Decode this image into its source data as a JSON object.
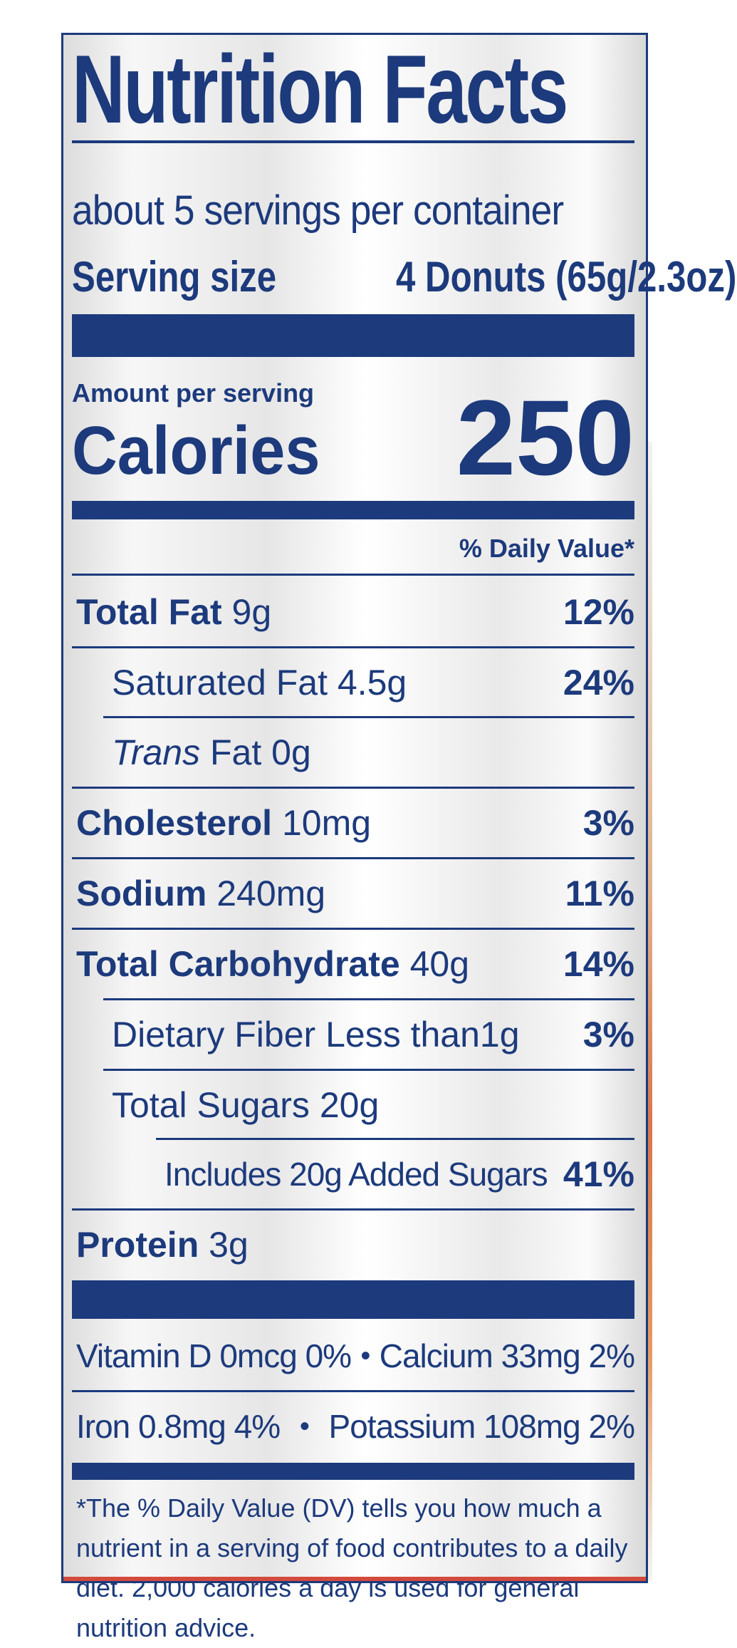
{
  "label": {
    "title": "Nutrition Facts",
    "servings_per_container": "about 5 servings per container",
    "serving_size_label": "Serving size",
    "serving_size_value": "4 Donuts (65g/2.3oz)",
    "amount_per_serving": "Amount per serving",
    "calories_label": "Calories",
    "calories_value": "250",
    "daily_value_header": "% Daily Value*",
    "nutrients": [
      {
        "name": "Total Fat",
        "amount": "9g",
        "dv": "12%"
      },
      {
        "name": "Saturated Fat",
        "amount": "4.5g",
        "dv": "24%"
      },
      {
        "name_italic": "Trans",
        "name": "Fat",
        "amount": "0g",
        "dv": ""
      },
      {
        "name": "Cholesterol",
        "amount": "10mg",
        "dv": "3%"
      },
      {
        "name": "Sodium",
        "amount": "240mg",
        "dv": "11%"
      },
      {
        "name": "Total Carbohydrate",
        "amount": "40g",
        "dv": "14%"
      },
      {
        "name": "Dietary Fiber Less than",
        "amount": "1g",
        "dv": "3%"
      },
      {
        "name": "Total Sugars",
        "amount": "20g",
        "dv": ""
      },
      {
        "name": "Includes 20g Added Sugars",
        "amount": "",
        "dv": "41%"
      },
      {
        "name": "Protein",
        "amount": "3g",
        "dv": ""
      }
    ],
    "vitamins": [
      {
        "left": "Vitamin D 0mcg 0%",
        "right": "Calcium 33mg 2%"
      },
      {
        "left": "Iron 0.8mg 4%",
        "right": "Potassium 108mg 2%"
      }
    ],
    "bullet": "•",
    "footnote": "*The % Daily Value (DV) tells you how much a nutrient in a serving of food contributes to a daily diet. 2,000 calories a day is used for general nutrition advice."
  },
  "colors": {
    "ink": "#1c3a7c",
    "accent_red": "#d34a3d"
  }
}
